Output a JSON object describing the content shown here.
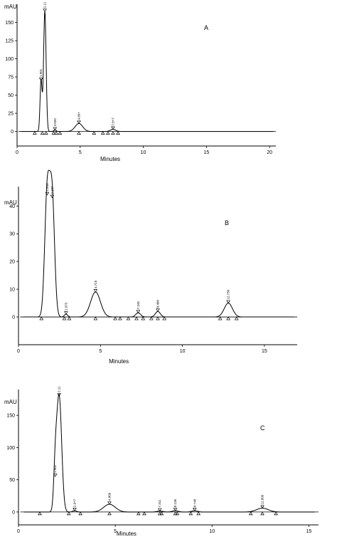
{
  "chart_data": [
    {
      "type": "line",
      "panel_label": "A",
      "ylabel": "mAU",
      "xlabel": "Minutes",
      "xlim": [
        0,
        20.5
      ],
      "ylim": [
        -20,
        175
      ],
      "x_ticks": [
        0,
        5,
        10,
        15,
        20
      ],
      "y_ticks": [
        0,
        25,
        50,
        75,
        100,
        125,
        150
      ],
      "peaks": [
        {
          "rt": 1.9,
          "height": 70,
          "width": 0.08,
          "label": "1.901"
        },
        {
          "rt": 2.2,
          "height": 165,
          "width": 0.1,
          "label": "2.11"
        },
        {
          "rt": 3.0,
          "height": 2,
          "width": 0.1,
          "label": "3.020"
        },
        {
          "rt": 4.9,
          "height": 11,
          "width": 0.3,
          "label": "4.89+"
        },
        {
          "rt": 7.6,
          "height": 3,
          "width": 0.2,
          "label": "7.8+7"
        }
      ],
      "markers": [
        1.4,
        2.0,
        2.3,
        2.9,
        3.1,
        3.4,
        4.9,
        6.1,
        6.8,
        7.2,
        7.6,
        8.0
      ]
    },
    {
      "type": "line",
      "panel_label": "B",
      "ylabel": "mAU",
      "xlabel": "Minutes",
      "xlim": [
        0,
        17
      ],
      "ylim": [
        -10,
        47
      ],
      "x_ticks": [
        0,
        5,
        10,
        15
      ],
      "y_ticks": [
        0,
        10,
        20,
        30,
        40
      ],
      "peaks": [
        {
          "rt": 1.75,
          "height": 44,
          "width": 0.15,
          "label": "1.940"
        },
        {
          "rt": 2.05,
          "height": 43,
          "width": 0.15,
          "label": "2.107"
        },
        {
          "rt": 2.9,
          "height": 1,
          "width": 0.1,
          "label": "2.973"
        },
        {
          "rt": 4.7,
          "height": 9,
          "width": 0.3,
          "label": "4.715"
        },
        {
          "rt": 7.3,
          "height": 1.5,
          "width": 0.15,
          "label": "7.245"
        },
        {
          "rt": 8.5,
          "height": 2,
          "width": 0.15,
          "label": "8.480"
        },
        {
          "rt": 12.8,
          "height": 5,
          "width": 0.25,
          "label": "12.730"
        }
      ],
      "markers": [
        1.4,
        2.8,
        3.1,
        4.7,
        5.9,
        6.2,
        6.7,
        7.2,
        7.6,
        8.1,
        8.5,
        8.9,
        12.3,
        12.8,
        13.3
      ]
    },
    {
      "type": "line",
      "panel_label": "C",
      "ylabel": "mAU",
      "xlabel": "Minutes",
      "xlim": [
        0,
        15.5
      ],
      "ylim": [
        -20,
        190
      ],
      "x_ticks": [
        0,
        5,
        10,
        15
      ],
      "y_ticks": [
        0,
        50,
        100,
        150
      ],
      "peaks": [
        {
          "rt": 1.9,
          "height": 55,
          "width": 0.08,
          "label": "1.902"
        },
        {
          "rt": 2.1,
          "height": 180,
          "width": 0.13,
          "label": "2.11"
        },
        {
          "rt": 2.9,
          "height": 2,
          "width": 0.1,
          "label": "2.9+7"
        },
        {
          "rt": 4.7,
          "height": 12,
          "width": 0.3,
          "label": "4.809"
        },
        {
          "rt": 7.3,
          "height": 1.5,
          "width": 0.15,
          "label": "7.311"
        },
        {
          "rt": 8.1,
          "height": 2,
          "width": 0.15,
          "label": "8.136"
        },
        {
          "rt": 9.1,
          "height": 2,
          "width": 0.15,
          "label": "8.+48"
        },
        {
          "rt": 12.6,
          "height": 6,
          "width": 0.3,
          "label": "12.609"
        }
      ],
      "markers": [
        1.1,
        2.6,
        3.2,
        4.7,
        6.2,
        6.5,
        7.3,
        7.4,
        8.1,
        8.2,
        8.9,
        9.3,
        12.0,
        12.6,
        13.3
      ]
    }
  ]
}
